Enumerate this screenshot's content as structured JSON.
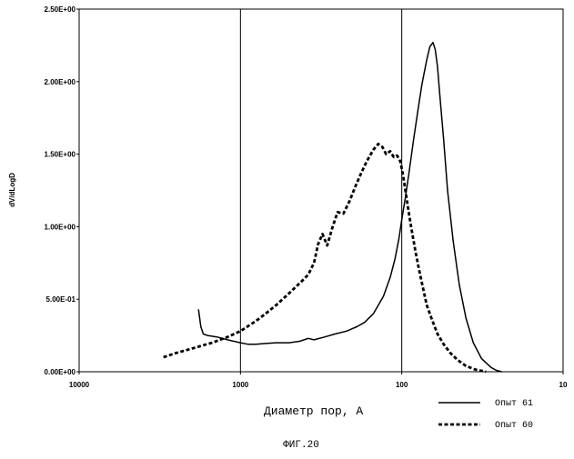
{
  "chart_data": {
    "type": "line",
    "xscale": "log",
    "xaxis_reversed": true,
    "xlim": [
      10000,
      10
    ],
    "ylim": [
      0,
      2.5
    ],
    "x_ticks": [
      {
        "value": 10000,
        "label": "10000"
      },
      {
        "value": 1000,
        "label": "1000"
      },
      {
        "value": 100,
        "label": "100"
      },
      {
        "value": 10,
        "label": "10"
      }
    ],
    "y_ticks": [
      {
        "value": 0,
        "label": "0.00E+00"
      },
      {
        "value": 0.5,
        "label": "5.00E-01"
      },
      {
        "value": 1.0,
        "label": "1.00E+00"
      },
      {
        "value": 1.5,
        "label": "1.50E+00"
      },
      {
        "value": 2.0,
        "label": "2.00E+00"
      },
      {
        "value": 2.5,
        "label": "2.50E+00"
      }
    ],
    "vertical_gridlines": [
      1000,
      100
    ],
    "xlabel": "Диаметр пор, А",
    "ylabel": "dV/dLogD",
    "legend_position": "bottom-right",
    "series": [
      {
        "name": "Опыт 61",
        "style": "solid",
        "color": "#000000",
        "x": [
          1820,
          1760,
          1700,
          1600,
          1400,
          1200,
          1000,
          900,
          800,
          700,
          600,
          500,
          430,
          380,
          350,
          300,
          260,
          220,
          190,
          170,
          150,
          130,
          118,
          110,
          104,
          100,
          95,
          90,
          85,
          80,
          75,
          70,
          67,
          64,
          62,
          60,
          58,
          55,
          52,
          48,
          44,
          40,
          36,
          32,
          28,
          26,
          24
        ],
        "y": [
          0.43,
          0.31,
          0.26,
          0.25,
          0.24,
          0.22,
          0.2,
          0.19,
          0.19,
          0.195,
          0.2,
          0.2,
          0.21,
          0.23,
          0.22,
          0.24,
          0.26,
          0.28,
          0.31,
          0.34,
          0.4,
          0.52,
          0.65,
          0.78,
          0.92,
          1.05,
          1.2,
          1.38,
          1.58,
          1.78,
          1.98,
          2.15,
          2.24,
          2.27,
          2.22,
          2.1,
          1.9,
          1.6,
          1.25,
          0.9,
          0.6,
          0.37,
          0.2,
          0.09,
          0.03,
          0.01,
          0.0
        ]
      },
      {
        "name": "Опыт 60",
        "style": "dashed",
        "color": "#000000",
        "x": [
          3000,
          2500,
          2000,
          1500,
          1200,
          1000,
          800,
          700,
          600,
          500,
          420,
          380,
          350,
          330,
          310,
          290,
          270,
          250,
          230,
          210,
          195,
          180,
          165,
          150,
          140,
          132,
          125,
          118,
          112,
          107,
          102,
          98,
          94,
          90,
          86,
          82,
          78,
          74,
          70,
          65,
          60,
          55,
          50,
          45,
          40,
          35,
          30
        ],
        "y": [
          0.1,
          0.13,
          0.16,
          0.2,
          0.24,
          0.28,
          0.35,
          0.4,
          0.46,
          0.54,
          0.62,
          0.67,
          0.75,
          0.88,
          0.95,
          0.87,
          0.99,
          1.1,
          1.09,
          1.18,
          1.27,
          1.36,
          1.45,
          1.53,
          1.57,
          1.55,
          1.5,
          1.52,
          1.48,
          1.49,
          1.45,
          1.35,
          1.22,
          1.08,
          0.95,
          0.82,
          0.7,
          0.58,
          0.46,
          0.36,
          0.26,
          0.19,
          0.13,
          0.08,
          0.04,
          0.015,
          0.0
        ]
      }
    ],
    "legend": [
      {
        "label": "Опыт 61",
        "style": "solid"
      },
      {
        "label": "Опыт 60",
        "style": "dashed"
      }
    ]
  },
  "caption": "ФИГ.20"
}
